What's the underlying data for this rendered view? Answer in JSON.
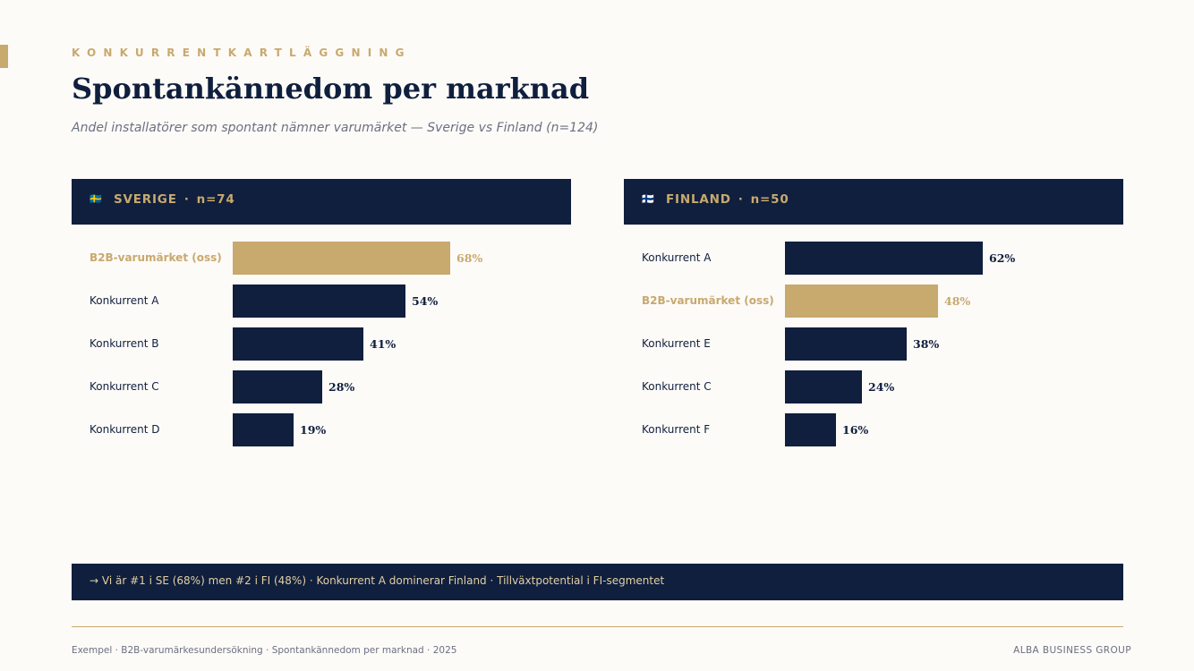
{
  "header": {
    "eyebrow": "KONKURRENTKARTLÄGGNING",
    "title": "Spontankännedom per marknad",
    "subtitle": "Andel installatörer som spontant nämner varumärket — Sverige vs Finland (n=124)"
  },
  "colors": {
    "navy": "#0f1f3d",
    "gold": "#c8a96e",
    "background": "#fdfbf8",
    "muted": "#6b7080"
  },
  "chart_data": [
    {
      "type": "bar",
      "orientation": "horizontal",
      "title": "SVERIGE",
      "flag": "🇸🇪",
      "sample": "n=74",
      "categories": [
        "B2B-varumärket (oss)",
        "Konkurrent A",
        "Konkurrent B",
        "Konkurrent C",
        "Konkurrent D"
      ],
      "values": [
        68,
        54,
        41,
        28,
        19
      ],
      "highlight": [
        true,
        false,
        false,
        false,
        false
      ],
      "value_suffix": "%",
      "xlim": [
        0,
        100
      ]
    },
    {
      "type": "bar",
      "orientation": "horizontal",
      "title": "FINLAND",
      "flag": "🇫🇮",
      "sample": "n=50",
      "categories": [
        "Konkurrent A",
        "B2B-varumärket (oss)",
        "Konkurrent E",
        "Konkurrent C",
        "Konkurrent F"
      ],
      "values": [
        62,
        48,
        38,
        24,
        16
      ],
      "highlight": [
        false,
        true,
        false,
        false,
        false
      ],
      "value_suffix": "%",
      "xlim": [
        0,
        100
      ]
    }
  ],
  "insight": "→ Vi är #1 i SE (68%) men #2 i FI (48%) · Konkurrent A dominerar Finland · Tillväxtpotential i FI-segmentet",
  "footer": {
    "left": "Exempel · B2B-varumärkesundersökning · Spontankännedom per marknad · 2025",
    "right": "ALBA BUSINESS GROUP"
  }
}
